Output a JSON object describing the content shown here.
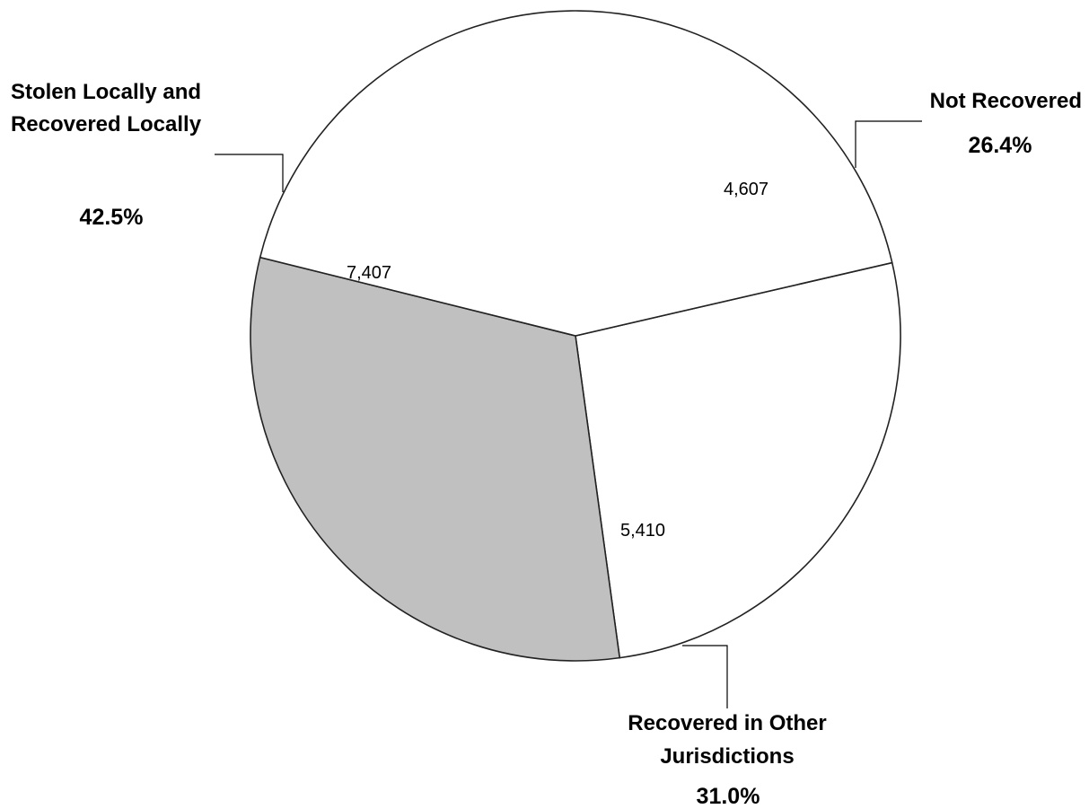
{
  "chart_data": {
    "type": "pie",
    "slices": [
      {
        "label_lines": [
          "Not Recovered"
        ],
        "value": 4607,
        "value_label": "4,607",
        "percent_label": "26.4%",
        "color": "#ffffff"
      },
      {
        "label_lines": [
          "Recovered in Other",
          "Jurisdictions"
        ],
        "value": 5410,
        "value_label": "5,410",
        "percent_label": "31.0%",
        "color": "#c0c0c0"
      },
      {
        "label_lines": [
          "Stolen Locally and",
          "Recovered Locally"
        ],
        "value": 7407,
        "value_label": "7,407",
        "percent_label": "42.5%",
        "color": "#ffffff"
      }
    ],
    "legend": "none"
  }
}
